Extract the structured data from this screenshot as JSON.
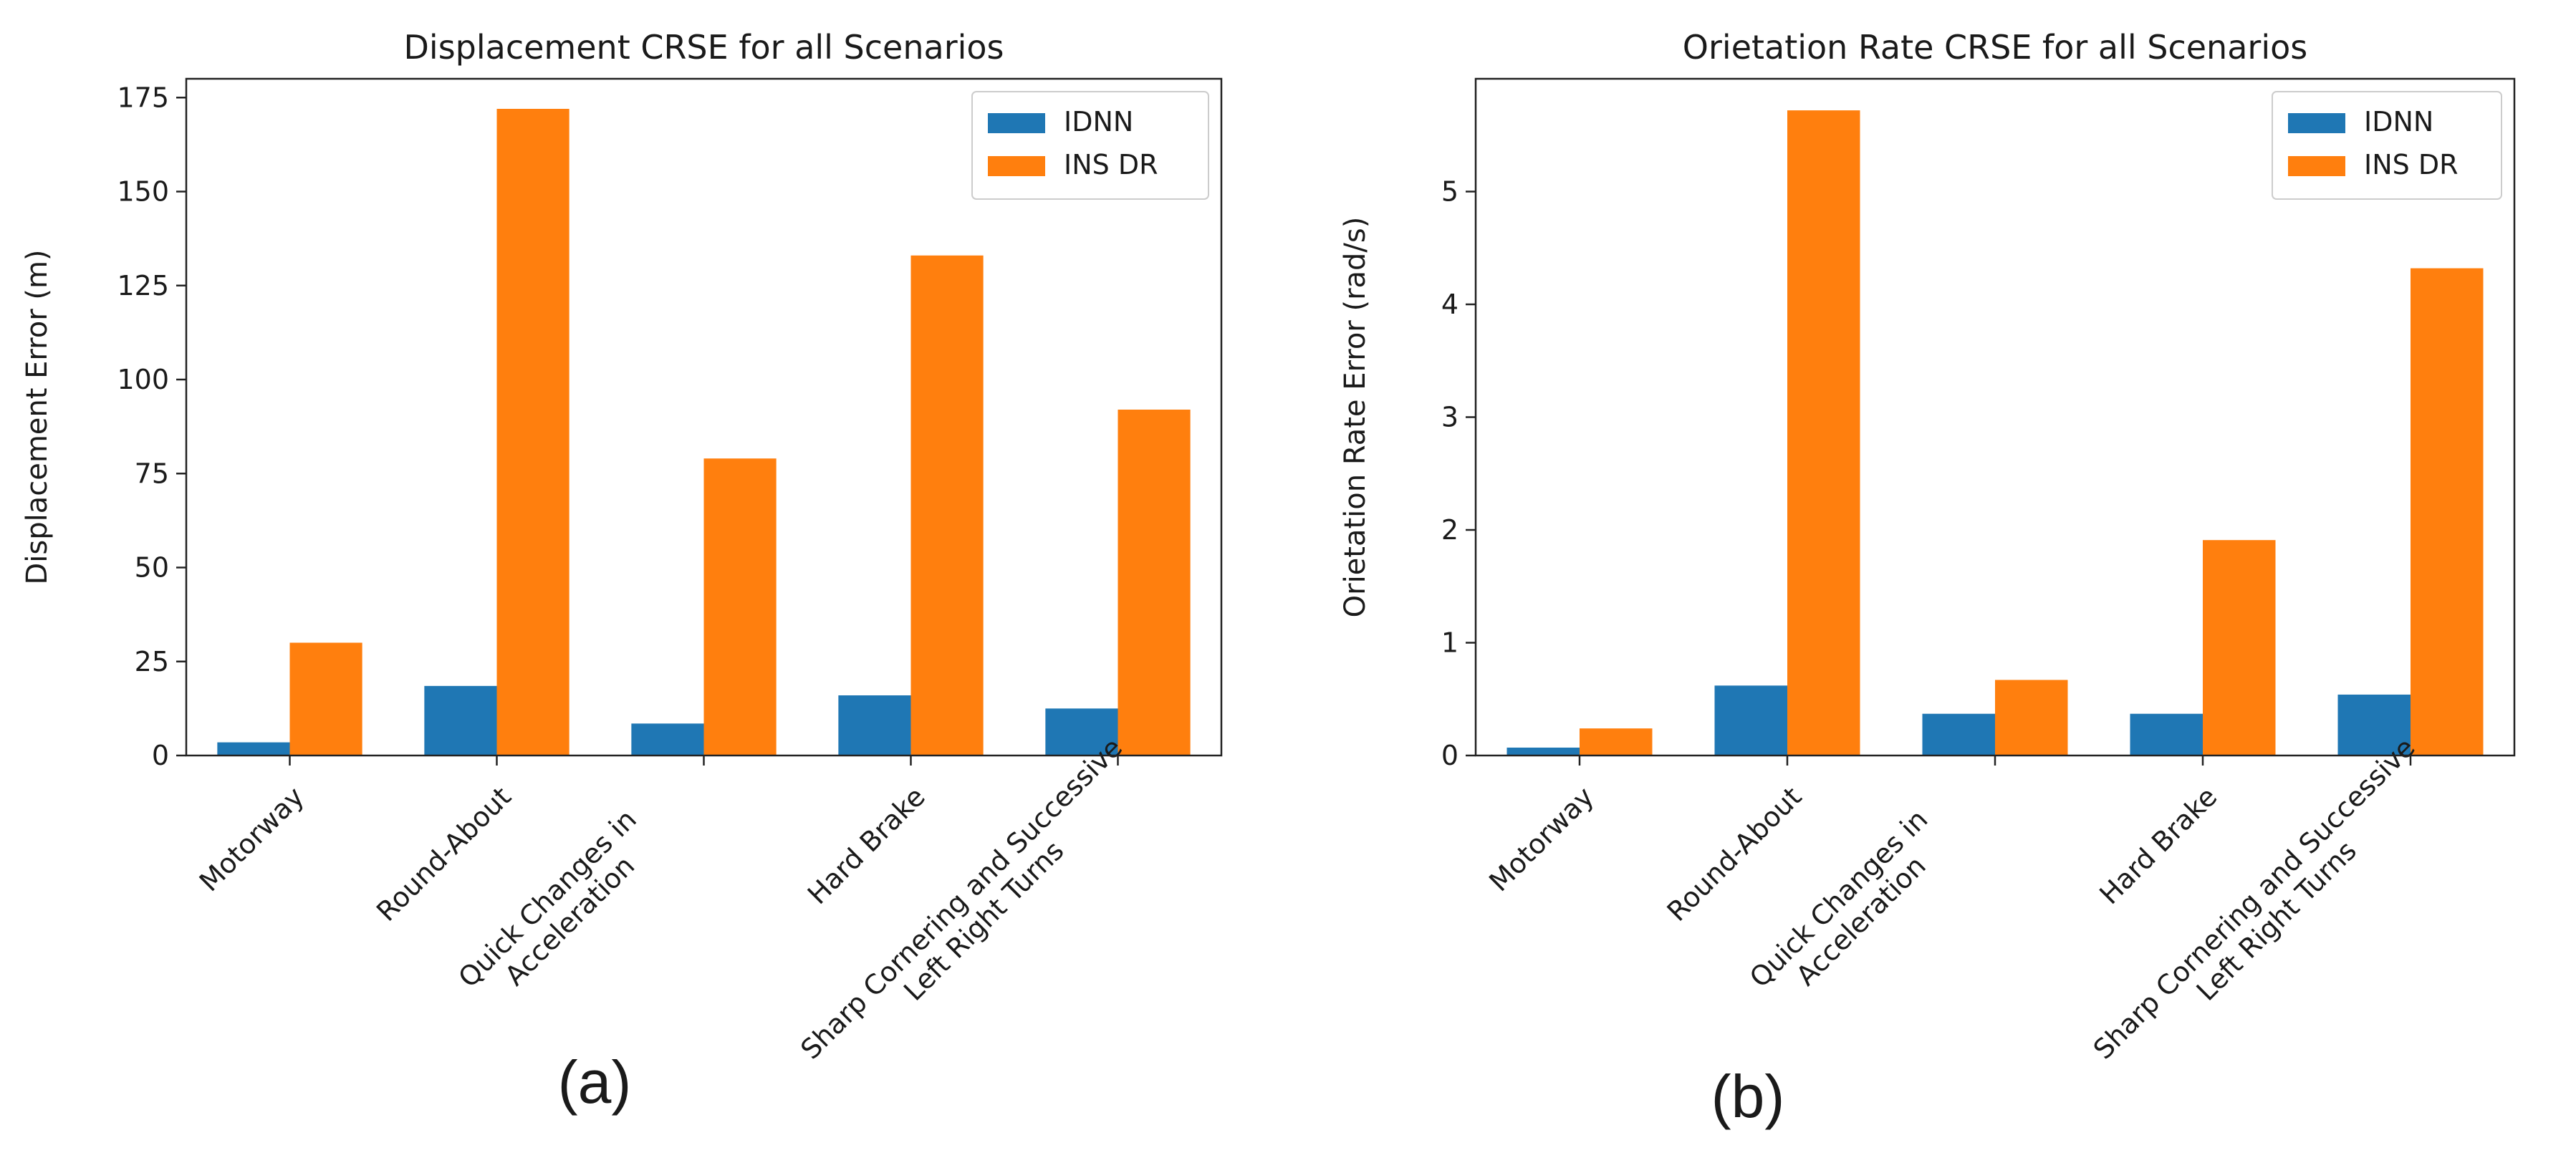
{
  "colors": {
    "IDNN": "#1f77b4",
    "INS DR": "#ff7f0e",
    "axis": "#222222"
  },
  "chart_data": [
    {
      "type": "bar",
      "title": "Displacement CRSE for all Scenarios",
      "xlabel": "",
      "ylabel": "Displacement Error (m)",
      "ylim": [
        0,
        180
      ],
      "yticks": [
        0,
        25,
        50,
        75,
        100,
        125,
        150,
        175
      ],
      "categories": [
        [
          "Motorway"
        ],
        [
          "Round-About"
        ],
        [
          "Quick Changes in",
          "Acceleration"
        ],
        [
          "Hard Brake"
        ],
        [
          "Sharp Cornering and Successive",
          "Left Right Turns"
        ]
      ],
      "series": [
        {
          "name": "IDNN",
          "values": [
            3.5,
            18.5,
            8.5,
            16,
            12.5
          ]
        },
        {
          "name": "INS DR",
          "values": [
            30,
            172,
            79,
            133,
            92
          ]
        }
      ],
      "legend": "top-right",
      "caption": "(a)"
    },
    {
      "type": "bar",
      "title": "Orietation Rate CRSE for all Scenarios",
      "xlabel": "",
      "ylabel": "Orietation Rate Error (rad/s)",
      "ylim": [
        0,
        6
      ],
      "yticks": [
        0,
        1,
        2,
        3,
        4,
        5
      ],
      "categories": [
        [
          "Motorway"
        ],
        [
          "Round-About"
        ],
        [
          "Quick Changes in",
          "Acceleration"
        ],
        [
          "Hard Brake"
        ],
        [
          "Sharp Cornering and Successive",
          "Left Right Turns"
        ]
      ],
      "series": [
        {
          "name": "IDNN",
          "values": [
            0.07,
            0.62,
            0.37,
            0.37,
            0.54
          ]
        },
        {
          "name": "INS DR",
          "values": [
            0.24,
            5.72,
            0.67,
            1.91,
            4.32
          ]
        }
      ],
      "legend": "top-right",
      "caption": "(b)"
    }
  ]
}
